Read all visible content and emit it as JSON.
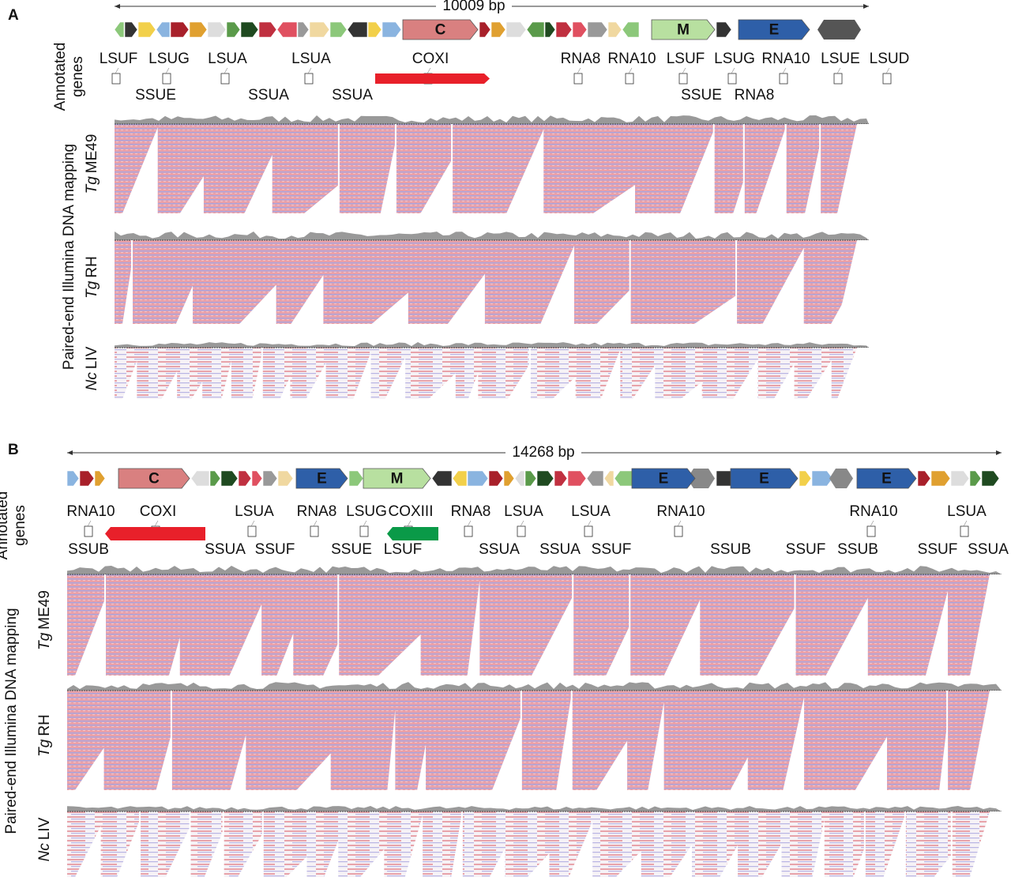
{
  "panels": [
    {
      "label": "A",
      "scale": "10009 bp",
      "gene_blocks": [
        "C",
        "M",
        "E"
      ],
      "genes_top": [
        "LSUF",
        "LSUG",
        "LSUA",
        "LSUA",
        "COXI",
        "RNA8",
        "RNA10",
        "LSUF",
        "LSUG",
        "RNA10",
        "LSUE",
        "LSUD"
      ],
      "genes_bottom": [
        "SSUE",
        "SSUA",
        "SSUA",
        "SSUE",
        "RNA8"
      ],
      "annotated_label": [
        "Annotated",
        "genes"
      ],
      "mapping_label": "Paired-end Illumina DNA mapping",
      "tracks": [
        {
          "species": "Tg",
          "strain": "ME49"
        },
        {
          "species": "Tg",
          "strain": "RH"
        },
        {
          "species": "Nc",
          "strain": "LIV"
        }
      ]
    },
    {
      "label": "B",
      "scale": "14268 bp",
      "gene_blocks": [
        "C",
        "E",
        "M",
        "E",
        "E",
        "E"
      ],
      "genes_top": [
        "RNA10",
        "COXI",
        "LSUA",
        "RNA8",
        "LSUG",
        "COXIII",
        "RNA8",
        "LSUA",
        "LSUA",
        "RNA10",
        "RNA10",
        "LSUA"
      ],
      "genes_bottom": [
        "SSUB",
        "SSUA",
        "SSUF",
        "SSUE",
        "LSUF",
        "SSUA",
        "SSUA",
        "SSUF",
        "SSUB",
        "SSUF",
        "SSUB",
        "SSUF",
        "SSUA"
      ],
      "annotated_label": [
        "Annotated",
        "genes"
      ],
      "mapping_label": "Paired-end Illumina DNA mapping",
      "tracks": [
        {
          "species": "Tg",
          "strain": "ME49"
        },
        {
          "species": "Tg",
          "strain": "RH"
        },
        {
          "species": "Nc",
          "strain": "LIV"
        }
      ]
    }
  ]
}
